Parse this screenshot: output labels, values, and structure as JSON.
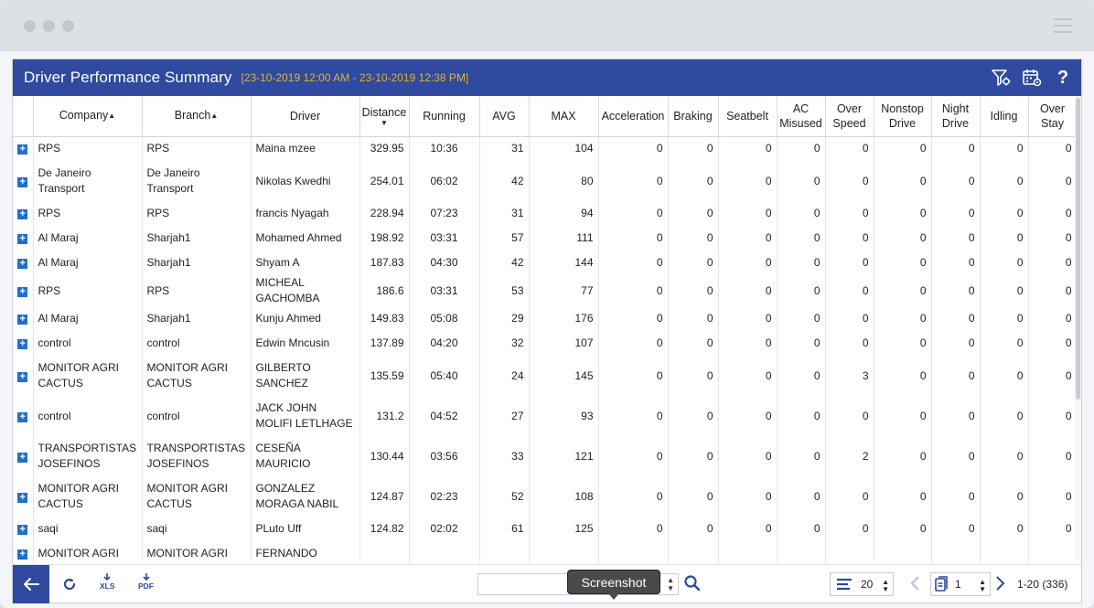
{
  "window": {
    "menu_icon": "hamburger-icon"
  },
  "header": {
    "title": "Driver Performance Summary",
    "range": "[23-10-2019 12:00 AM - 23-10-2019 12:38 PM]",
    "icons": [
      "filter-settings-icon",
      "calendar-settings-icon",
      "help-icon"
    ],
    "help_glyph": "?"
  },
  "columns": {
    "company": "Company",
    "branch": "Branch",
    "driver": "Driver",
    "distance": "Distance",
    "running": "Running",
    "avg": "AVG",
    "max": "MAX",
    "acceleration": "Acceleration",
    "braking": "Braking",
    "seatbelt": "Seatbelt",
    "ac_misused_1": "AC",
    "ac_misused_2": "Misused",
    "over_speed_1": "Over",
    "over_speed_2": "Speed",
    "nonstop_drive_1": "Nonstop",
    "nonstop_drive_2": "Drive",
    "night_drive_1": "Night",
    "night_drive_2": "Drive",
    "idling": "Idling",
    "over_stay_1": "Over",
    "over_stay_2": "Stay"
  },
  "rows": [
    {
      "company": "RPS",
      "branch": "RPS",
      "driver": "Maina mzee",
      "distance": "329.95",
      "running": "10:36",
      "avg": "31",
      "max": "104",
      "acc": "0",
      "brk": "0",
      "seat": "0",
      "ac": "0",
      "ovs": "0",
      "nsd": "0",
      "ngt": "0",
      "idl": "0",
      "ost": "0"
    },
    {
      "company": "De Janeiro Transport",
      "branch": "De Janeiro Transport",
      "driver": "Nikolas Kwedhi",
      "distance": "254.01",
      "running": "06:02",
      "avg": "42",
      "max": "80",
      "acc": "0",
      "brk": "0",
      "seat": "0",
      "ac": "0",
      "ovs": "0",
      "nsd": "0",
      "ngt": "0",
      "idl": "0",
      "ost": "0"
    },
    {
      "company": "RPS",
      "branch": "RPS",
      "driver": "francis Nyagah",
      "distance": "228.94",
      "running": "07:23",
      "avg": "31",
      "max": "94",
      "acc": "0",
      "brk": "0",
      "seat": "0",
      "ac": "0",
      "ovs": "0",
      "nsd": "0",
      "ngt": "0",
      "idl": "0",
      "ost": "0"
    },
    {
      "company": "Al Maraj",
      "branch": "Sharjah1",
      "driver": "Mohamed Ahmed",
      "distance": "198.92",
      "running": "03:31",
      "avg": "57",
      "max": "111",
      "acc": "0",
      "brk": "0",
      "seat": "0",
      "ac": "0",
      "ovs": "0",
      "nsd": "0",
      "ngt": "0",
      "idl": "0",
      "ost": "0"
    },
    {
      "company": "Al Maraj",
      "branch": "Sharjah1",
      "driver": "Shyam A",
      "distance": "187.83",
      "running": "04:30",
      "avg": "42",
      "max": "144",
      "acc": "0",
      "brk": "0",
      "seat": "0",
      "ac": "0",
      "ovs": "0",
      "nsd": "0",
      "ngt": "0",
      "idl": "0",
      "ost": "0"
    },
    {
      "company": "RPS",
      "branch": "RPS",
      "driver": "MICHEAL GACHOMBA",
      "distance": "186.6",
      "running": "03:31",
      "avg": "53",
      "max": "77",
      "acc": "0",
      "brk": "0",
      "seat": "0",
      "ac": "0",
      "ovs": "0",
      "nsd": "0",
      "ngt": "0",
      "idl": "0",
      "ost": "0"
    },
    {
      "company": "Al Maraj",
      "branch": "Sharjah1",
      "driver": "Kunju Ahmed",
      "distance": "149.83",
      "running": "05:08",
      "avg": "29",
      "max": "176",
      "acc": "0",
      "brk": "0",
      "seat": "0",
      "ac": "0",
      "ovs": "0",
      "nsd": "0",
      "ngt": "0",
      "idl": "0",
      "ost": "0"
    },
    {
      "company": "control",
      "branch": "control",
      "driver": "Edwin Mncusin",
      "distance": "137.89",
      "running": "04:20",
      "avg": "32",
      "max": "107",
      "acc": "0",
      "brk": "0",
      "seat": "0",
      "ac": "0",
      "ovs": "0",
      "nsd": "0",
      "ngt": "0",
      "idl": "0",
      "ost": "0"
    },
    {
      "company": "MONITOR AGRI CACTUS",
      "branch": "MONITOR AGRI CACTUS",
      "driver": "GILBERTO SANCHEZ",
      "distance": "135.59",
      "running": "05:40",
      "avg": "24",
      "max": "145",
      "acc": "0",
      "brk": "0",
      "seat": "0",
      "ac": "0",
      "ovs": "3",
      "nsd": "0",
      "ngt": "0",
      "idl": "0",
      "ost": "0"
    },
    {
      "company": "control",
      "branch": "control",
      "driver": "JACK JOHN MOLIFI LETLHAGE",
      "distance": "131.2",
      "running": "04:52",
      "avg": "27",
      "max": "93",
      "acc": "0",
      "brk": "0",
      "seat": "0",
      "ac": "0",
      "ovs": "0",
      "nsd": "0",
      "ngt": "0",
      "idl": "0",
      "ost": "0"
    },
    {
      "company": "TRANSPORTISTAS JOSEFINOS",
      "branch": "TRANSPORTISTAS JOSEFINOS",
      "driver": "CESEÑA MAURICIO",
      "distance": "130.44",
      "running": "03:56",
      "avg": "33",
      "max": "121",
      "acc": "0",
      "brk": "0",
      "seat": "0",
      "ac": "0",
      "ovs": "2",
      "nsd": "0",
      "ngt": "0",
      "idl": "0",
      "ost": "0"
    },
    {
      "company": "MONITOR AGRI CACTUS",
      "branch": "MONITOR AGRI CACTUS",
      "driver": "GONZALEZ MORAGA NABIL",
      "distance": "124.87",
      "running": "02:23",
      "avg": "52",
      "max": "108",
      "acc": "0",
      "brk": "0",
      "seat": "0",
      "ac": "0",
      "ovs": "0",
      "nsd": "0",
      "ngt": "0",
      "idl": "0",
      "ost": "0"
    },
    {
      "company": "saqi",
      "branch": "saqi",
      "driver": "PLuto Uff",
      "distance": "124.82",
      "running": "02:02",
      "avg": "61",
      "max": "125",
      "acc": "0",
      "brk": "0",
      "seat": "0",
      "ac": "0",
      "ovs": "0",
      "nsd": "0",
      "ngt": "0",
      "idl": "0",
      "ost": "0"
    },
    {
      "company": "MONITOR AGRI",
      "branch": "MONITOR AGRI",
      "driver": "FERNANDO",
      "distance": "",
      "running": "",
      "avg": "",
      "max": "",
      "acc": "",
      "brk": "",
      "seat": "",
      "ac": "",
      "ovs": "",
      "nsd": "",
      "ngt": "",
      "idl": "",
      "ost": ""
    }
  ],
  "footer": {
    "xls_label": "XLS",
    "pdf_label": "PDF",
    "search_value": "",
    "tooltip": "Screenshot",
    "rows_per_page": "20",
    "page": "1",
    "page_info": "1-20 (336)"
  },
  "colors": {
    "header_bg": "#2f4a9e",
    "range_text": "#e0b43a",
    "expand": "#1e6fd0"
  }
}
